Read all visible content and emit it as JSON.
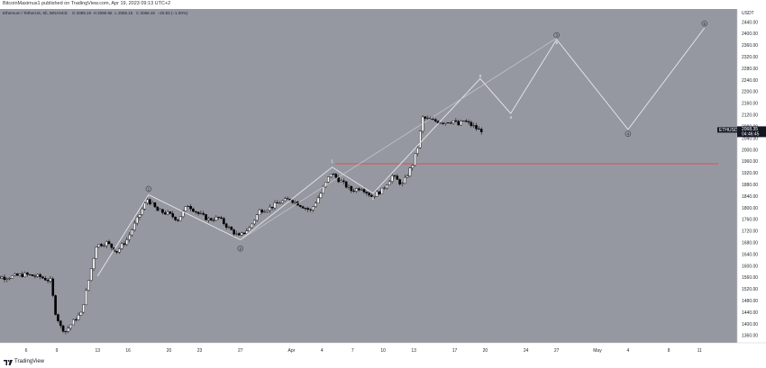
{
  "header": {
    "published_line": "BitcoinMaximus1 published on TradingView.com, Apr 19, 2023 09:13 UTC+2",
    "symbol_line": "Ethereum / TetherUS, 6h, BINANCE",
    "ohlc": [
      "O 2089.19",
      "H 2090.96",
      "L 2065.15",
      "C 2068.15",
      "−20.83 (−1.00%)"
    ]
  },
  "footer": {
    "brand": "TradingView"
  },
  "colors": {
    "background": "#9598a1",
    "wave_line": "#e8e8ea",
    "horizontal_line": "#e05050",
    "candle_up": "#ffffff",
    "candle_down": "#000000"
  },
  "chart_data": {
    "type": "candlestick",
    "instrument": "ETHUSDT",
    "currency": "USDT",
    "last_price": "2068.35",
    "countdown": "04:46:45",
    "price_ticks": [
      "2440.00",
      "2400.00",
      "2360.00",
      "2320.00",
      "2280.00",
      "2240.00",
      "2200.00",
      "2160.00",
      "2120.00",
      "2080.00",
      "2040.00",
      "2000.00",
      "1960.00",
      "1920.00",
      "1880.00",
      "1840.00",
      "1800.00",
      "1760.00",
      "1720.00",
      "1680.00",
      "1640.00",
      "1600.00",
      "1560.00",
      "1520.00",
      "1480.00",
      "1440.00",
      "1400.00",
      "1360.00"
    ],
    "time_ticks": [
      "6",
      "9",
      "13",
      "16",
      "20",
      "23",
      "27",
      "Apr",
      "4",
      "7",
      "10",
      "13",
      "17",
      "20",
      "24",
      "27",
      "May",
      "4",
      "8",
      "11"
    ],
    "ylim": [
      1335,
      2485
    ],
    "horizontal_line": 1952,
    "price_path": [
      [
        "Mar 2",
        1565
      ],
      [
        "Mar 4",
        1560
      ],
      [
        "Mar 6",
        1570
      ],
      [
        "Mar 7.5",
        1562
      ],
      [
        "Mar 8.5",
        1548
      ],
      [
        "Mar 9",
        1440
      ],
      [
        "Mar 9.5",
        1390
      ],
      [
        "Mar 10",
        1375
      ],
      [
        "Mar 11",
        1420
      ],
      [
        "Mar 11.5",
        1435
      ],
      [
        "Mar 12",
        1510
      ],
      [
        "Mar 13",
        1670
      ],
      [
        "Mar 14",
        1680
      ],
      [
        "Mar 15",
        1650
      ],
      [
        "Mar 16",
        1690
      ],
      [
        "Mar 17",
        1760
      ],
      [
        "Mar 18",
        1830
      ],
      [
        "Mar 19",
        1790
      ],
      [
        "Mar 20",
        1780
      ],
      [
        "Mar 21",
        1760
      ],
      [
        "Mar 22",
        1810
      ],
      [
        "Mar 23",
        1780
      ],
      [
        "Mar 24",
        1760
      ],
      [
        "Mar 25",
        1765
      ],
      [
        "Mar 26",
        1730
      ],
      [
        "Mar 27",
        1700
      ],
      [
        "Mar 28",
        1730
      ],
      [
        "Mar 29",
        1790
      ],
      [
        "Mar 30",
        1800
      ],
      [
        "Mar 31",
        1820
      ],
      [
        "Apr 1",
        1830
      ],
      [
        "Apr 2",
        1810
      ],
      [
        "Apr 3",
        1790
      ],
      [
        "Apr 4",
        1850
      ],
      [
        "Apr 5",
        1920
      ],
      [
        "Apr 6",
        1890
      ],
      [
        "Apr 7",
        1860
      ],
      [
        "Apr 8",
        1870
      ],
      [
        "Apr 9",
        1840
      ],
      [
        "Apr 10",
        1860
      ],
      [
        "Apr 11",
        1910
      ],
      [
        "Apr 12",
        1880
      ],
      [
        "Apr 13",
        1950
      ],
      [
        "Apr 13.5",
        2010
      ],
      [
        "Apr 14",
        2110
      ],
      [
        "Apr 15",
        2100
      ],
      [
        "Apr 16",
        2095
      ],
      [
        "Apr 17",
        2100
      ],
      [
        "Apr 17.5",
        2085
      ],
      [
        "Apr 18",
        2100
      ],
      [
        "Apr 19",
        2080
      ],
      [
        "Apr 19.5",
        2068
      ]
    ],
    "wave_labels": [
      {
        "label": "1",
        "date": "Mar 18",
        "price": 1865,
        "circled": true
      },
      {
        "label": "2",
        "date": "Mar 27",
        "price": 1660,
        "circled": true
      },
      {
        "label": "1",
        "date": "Apr 5",
        "price": 1962,
        "circled": false
      },
      {
        "label": "2",
        "date": "Apr 9",
        "price": 1835,
        "circled": false
      },
      {
        "label": "3",
        "date": "Apr 19.5",
        "price": 2255,
        "circled": false
      },
      {
        "label": "4",
        "date": "Apr 22.5",
        "price": 2112,
        "circled": false
      },
      {
        "label": "3",
        "date": "Apr 27",
        "price": 2395,
        "circled": true
      },
      {
        "label": "5",
        "date": "Apr 27",
        "price": 2370,
        "circled": false
      },
      {
        "label": "4",
        "date": "May 4",
        "price": 2055,
        "circled": true
      },
      {
        "label": "5",
        "date": "May 11.5",
        "price": 2435,
        "circled": true
      }
    ],
    "projection_path": [
      [
        "Mar 13",
        1565
      ],
      [
        "Mar 18",
        1845
      ],
      [
        "Mar 27",
        1690
      ],
      [
        "Apr 5",
        1940
      ],
      [
        "Apr 9",
        1850
      ],
      [
        "Apr 19.5",
        2245
      ],
      [
        "Apr 22.5",
        2125
      ],
      [
        "Apr 27",
        2380
      ],
      [
        "May 4",
        2070
      ],
      [
        "May 11.5",
        2420
      ]
    ],
    "channel_line": [
      [
        "Mar 27",
        1690
      ],
      [
        "Apr 27",
        2385
      ]
    ]
  }
}
